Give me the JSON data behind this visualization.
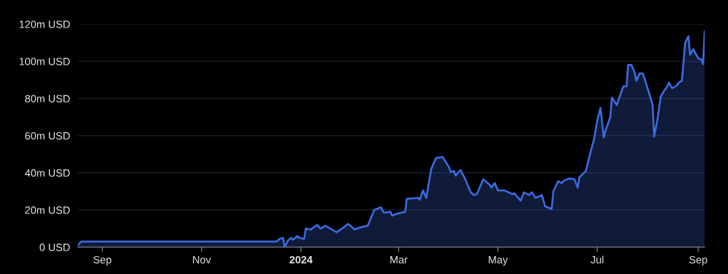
{
  "chart_data": {
    "type": "area",
    "x": [
      "2023-08-17",
      "2023-08-19",
      "2023-08-25",
      "2023-11-17",
      "2023-12-17",
      "2023-12-19",
      "2023-12-21",
      "2023-12-22",
      "2023-12-24",
      "2023-12-26",
      "2023-12-27",
      "2023-12-30",
      "2023-12-31",
      "2024-01-03",
      "2024-01-04",
      "2024-01-07",
      "2024-01-11",
      "2024-01-13",
      "2024-01-16",
      "2024-01-23",
      "2024-01-27",
      "2024-01-30",
      "2024-02-03",
      "2024-02-06",
      "2024-02-11",
      "2024-02-15",
      "2024-02-19",
      "2024-02-21",
      "2024-02-25",
      "2024-02-26",
      "2024-02-29",
      "2024-03-05",
      "2024-03-06",
      "2024-03-13",
      "2024-03-14",
      "2024-03-16",
      "2024-03-18",
      "2024-03-21",
      "2024-03-24",
      "2024-03-28",
      "2024-04-01",
      "2024-04-02",
      "2024-04-04",
      "2024-04-05",
      "2024-04-08",
      "2024-04-11",
      "2024-04-14",
      "2024-04-16",
      "2024-04-18",
      "2024-04-22",
      "2024-04-26",
      "2024-04-27",
      "2024-04-29",
      "2024-05-01",
      "2024-05-05",
      "2024-05-10",
      "2024-05-11",
      "2024-05-15",
      "2024-05-17",
      "2024-05-20",
      "2024-05-22",
      "2024-05-24",
      "2024-05-28",
      "2024-05-30",
      "2024-06-03",
      "2024-06-04",
      "2024-06-07",
      "2024-06-09",
      "2024-06-11",
      "2024-06-14",
      "2024-06-17",
      "2024-06-19",
      "2024-06-20",
      "2024-06-24",
      "2024-06-27",
      "2024-06-29",
      "2024-07-01",
      "2024-07-03",
      "2024-07-05",
      "2024-07-06",
      "2024-07-09",
      "2024-07-10",
      "2024-07-13",
      "2024-07-17",
      "2024-07-19",
      "2024-07-20",
      "2024-07-22",
      "2024-07-24",
      "2024-07-25",
      "2024-07-27",
      "2024-07-29",
      "2024-08-02",
      "2024-08-04",
      "2024-08-05",
      "2024-08-07",
      "2024-08-09",
      "2024-08-11",
      "2024-08-13",
      "2024-08-14",
      "2024-08-16",
      "2024-08-19",
      "2024-08-20",
      "2024-08-22",
      "2024-08-24",
      "2024-08-26",
      "2024-08-27",
      "2024-08-29",
      "2024-09-01",
      "2024-09-03",
      "2024-09-04",
      "2024-09-05"
    ],
    "series": [
      {
        "color": "#3b6ae0",
        "values": [
          1,
          3,
          3,
          3,
          3,
          4.5,
          5,
          0,
          3.5,
          5,
          4,
          6,
          5,
          4.5,
          10,
          9.5,
          12,
          10,
          11.5,
          8,
          10.5,
          12.5,
          9.5,
          10.5,
          11.5,
          20,
          21.5,
          18.5,
          19,
          17,
          18,
          19,
          26,
          26.5,
          25.5,
          30.5,
          26.5,
          42,
          48,
          48.5,
          43,
          40.5,
          41,
          38.5,
          41.5,
          36.5,
          30,
          28,
          28.5,
          36.5,
          33.5,
          32,
          34.5,
          30.5,
          30.5,
          28.5,
          29,
          25,
          29.5,
          28,
          29.5,
          26.5,
          28,
          22,
          20.5,
          30,
          35.5,
          34.5,
          36,
          37,
          36.5,
          32,
          37.5,
          41,
          51.5,
          58,
          68,
          75,
          59,
          62.5,
          70,
          80.5,
          76.5,
          86.5,
          86.5,
          98,
          98,
          94,
          89.5,
          93.5,
          93.5,
          82.5,
          76.5,
          59.5,
          69,
          81,
          84,
          86.5,
          88.5,
          85.5,
          87,
          88.5,
          89.5,
          110,
          113.5,
          103.5,
          106.5,
          101.5,
          101,
          98.5,
          116
        ]
      }
    ],
    "xlim": [
      "2023-08-17",
      "2024-09-05"
    ],
    "xticks": [
      {
        "value": "2023-09-01",
        "label": "Sep"
      },
      {
        "value": "2023-11-01",
        "label": "Nov"
      },
      {
        "value": "2024-01-01",
        "label": "2024"
      },
      {
        "value": "2024-03-01",
        "label": "Mar"
      },
      {
        "value": "2024-05-01",
        "label": "May"
      },
      {
        "value": "2024-07-01",
        "label": "Jul"
      },
      {
        "value": "2024-09-01",
        "label": "Sep"
      }
    ],
    "ylim": [
      0,
      120
    ],
    "yticks": [
      {
        "value": 0,
        "label": "0 USD"
      },
      {
        "value": 20,
        "label": "20m USD"
      },
      {
        "value": 40,
        "label": "40m USD"
      },
      {
        "value": 60,
        "label": "60m USD"
      },
      {
        "value": 80,
        "label": "80m USD"
      },
      {
        "value": 100,
        "label": "100m USD"
      },
      {
        "value": 120,
        "label": "120m USD"
      }
    ],
    "grid": "y"
  }
}
